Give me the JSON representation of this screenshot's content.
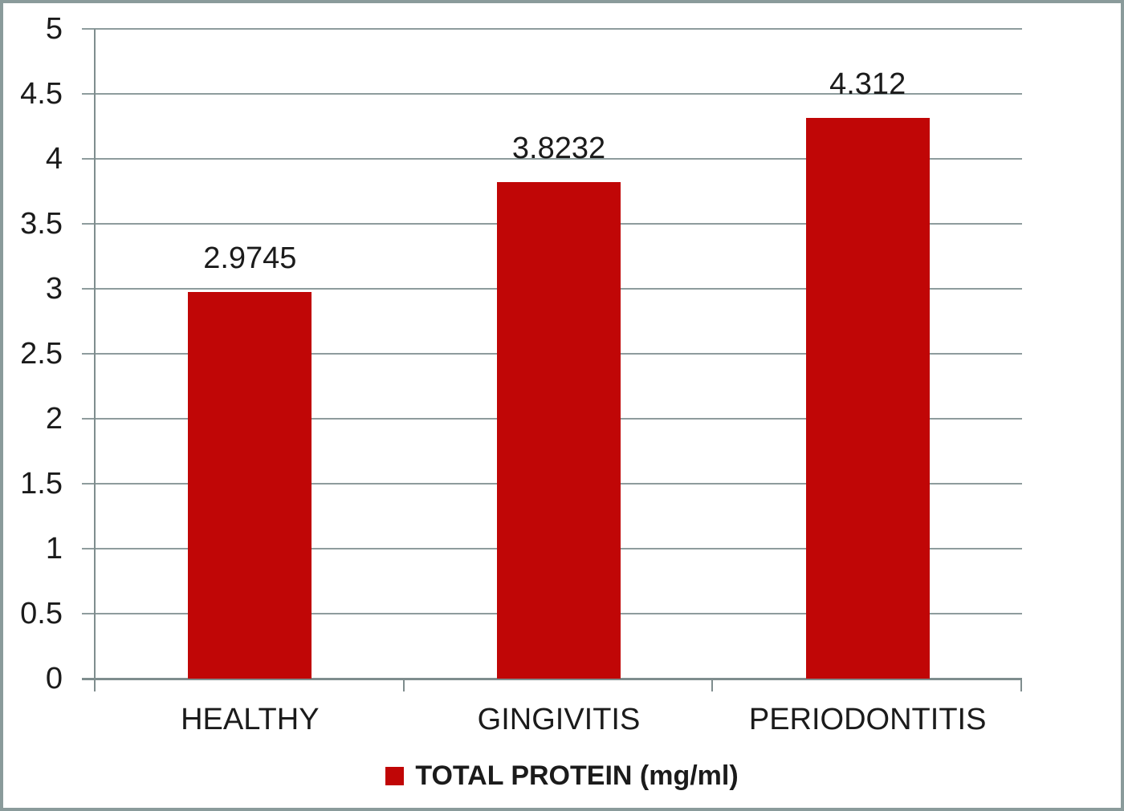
{
  "chart_data": {
    "type": "bar",
    "title": "",
    "categories": [
      "HEALTHY",
      "GINGIVITIS",
      "PERIODONTITIS"
    ],
    "values": [
      2.9745,
      3.8232,
      4.312
    ],
    "value_labels": [
      "2.9745",
      "3.8232",
      "4.312"
    ],
    "series": [
      {
        "name": "TOTAL PROTEIN (mg/ml)",
        "values": [
          2.9745,
          3.8232,
          4.312
        ]
      }
    ],
    "series_name": "TOTAL PROTEIN (mg/ml)",
    "xlabel": "",
    "ylabel": "",
    "ylim": [
      0,
      5
    ],
    "ytick_step": 0.5,
    "ytick_labels": [
      "5",
      "4.5",
      "4",
      "3.5",
      "3",
      "2.5",
      "2",
      "1.5",
      "1",
      "0.5",
      "0"
    ],
    "grid": true,
    "legend_position": "bottom",
    "colors": {
      "bar": "#C00606",
      "gridline": "#8E9C9D",
      "axis": "#7F8D8E",
      "border": "#8A9B9B",
      "text": "#1B1B1B",
      "background": "#FFFFFF"
    }
  },
  "legend": {
    "label": "TOTAL PROTEIN (mg/ml)",
    "swatch": "red-square-icon"
  }
}
